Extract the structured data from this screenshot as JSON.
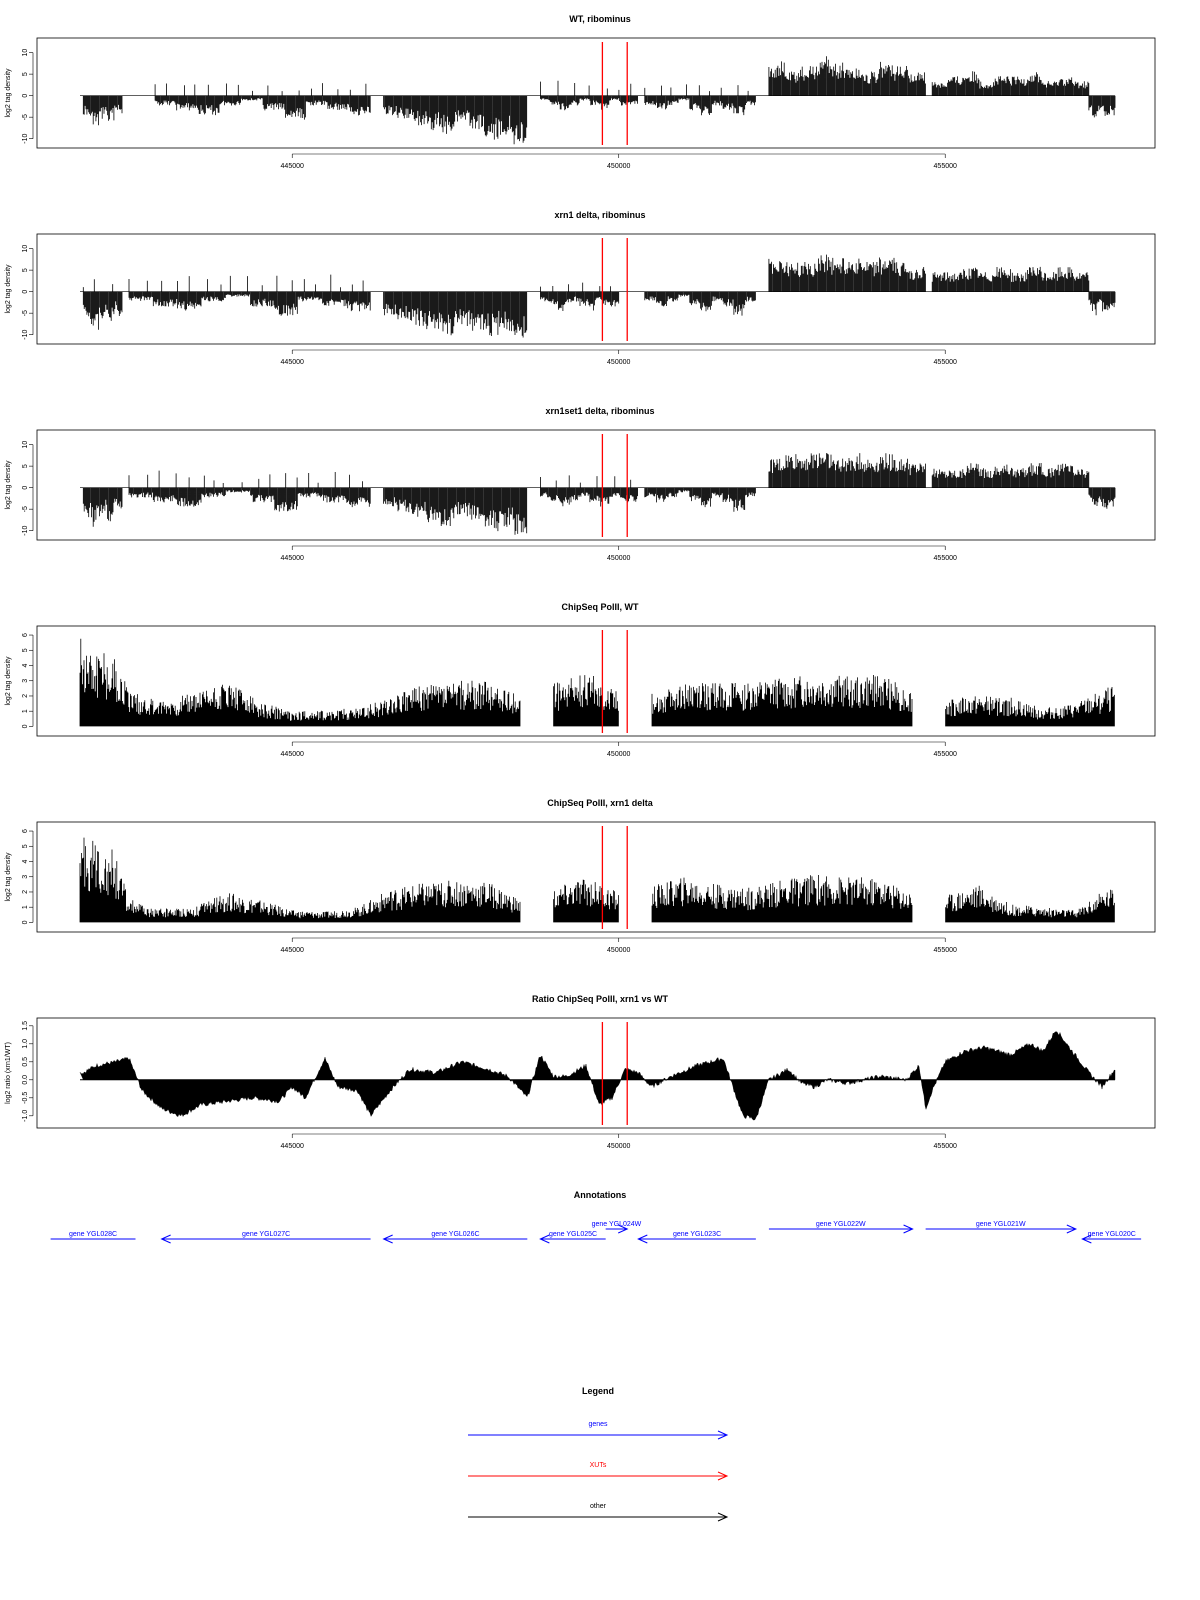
{
  "x_ticks": [
    "445000",
    "450000",
    "455000"
  ],
  "x_tick_values": [
    445000,
    450000,
    455000
  ],
  "x_range": [
    441750,
    457600
  ],
  "marker_positions": [
    449750,
    450130
  ],
  "colors": {
    "bars": "#000000",
    "marker": "#ff0000",
    "gene": "#0000ff",
    "xut": "#ff0000",
    "other": "#000000"
  },
  "chart_data": [
    {
      "type": "bar",
      "title": "WT, ribominus",
      "ylabel": "log2 tag density",
      "ylim": [
        -11,
        12
      ],
      "y_ticks": [
        "10",
        "5",
        "0",
        "-5",
        "-10"
      ],
      "y_tick_values": [
        10,
        5,
        0,
        -5,
        -10
      ],
      "segments": [
        {
          "x": [
            441800,
            442400
          ],
          "pattern": [
            -4,
            -5,
            -6,
            -7,
            -5,
            -4,
            -6,
            -5,
            -3,
            -4
          ],
          "pos": [
            0,
            0
          ]
        },
        {
          "x": [
            442900,
            446200
          ],
          "pattern": [
            -2,
            -3,
            -4,
            -2,
            -1,
            -3,
            -5,
            -2,
            -3,
            -4
          ],
          "pos": [
            1,
            2
          ]
        },
        {
          "x": [
            446400,
            448600
          ],
          "pattern": [
            -4,
            -5,
            -6,
            -7,
            -8,
            -6,
            -7,
            -9,
            -8,
            -10
          ],
          "pos": [
            0,
            0
          ]
        },
        {
          "x": [
            448800,
            450300
          ],
          "pattern": [
            -1,
            -2,
            -3,
            -2,
            -1,
            -2,
            -3,
            -1,
            -2,
            -2
          ],
          "pos": [
            1,
            3
          ]
        },
        {
          "x": [
            450400,
            452100
          ],
          "pattern": [
            -2,
            -3,
            -2,
            -1,
            -3,
            -4,
            -2,
            -3,
            -4,
            -2
          ],
          "pos": [
            1,
            2
          ]
        },
        {
          "x": [
            452300,
            454700
          ],
          "pattern": [
            7,
            5,
            6,
            8,
            7,
            6,
            5,
            7,
            6,
            5
          ],
          "pos": [
            0,
            0
          ]
        },
        {
          "x": [
            454800,
            457200
          ],
          "pattern": [
            3,
            4,
            5,
            3,
            4,
            4,
            5,
            3,
            4,
            3
          ],
          "pos": [
            0,
            0
          ]
        },
        {
          "x": [
            457200,
            457600
          ],
          "pattern": [
            -3,
            -4,
            -5,
            -4,
            -3,
            -4,
            -5,
            -4,
            -3,
            -4
          ],
          "pos": [
            0,
            0
          ]
        }
      ]
    },
    {
      "type": "bar",
      "title": "xrn1 delta, ribominus",
      "ylabel": "log2 tag density",
      "ylim": [
        -11,
        12
      ],
      "y_ticks": [
        "10",
        "5",
        "0",
        "-5",
        "-10"
      ],
      "y_tick_values": [
        10,
        5,
        0,
        -5,
        -10
      ],
      "segments": [
        {
          "x": [
            441800,
            442400
          ],
          "pattern": [
            -5,
            -6,
            -7,
            -8,
            -6,
            -5,
            -7,
            -6,
            -4,
            -5
          ],
          "pos": [
            1,
            2
          ]
        },
        {
          "x": [
            442500,
            446200
          ],
          "pattern": [
            -2,
            -3,
            -4,
            -2,
            -1,
            -3,
            -5,
            -2,
            -3,
            -4
          ],
          "pos": [
            1,
            3
          ]
        },
        {
          "x": [
            446400,
            448600
          ],
          "pattern": [
            -5,
            -6,
            -7,
            -8,
            -9,
            -7,
            -8,
            -9,
            -8,
            -10
          ],
          "pos": [
            0,
            0
          ]
        },
        {
          "x": [
            448800,
            450000
          ],
          "pattern": [
            -2,
            -3,
            -4,
            -3,
            -2,
            -3,
            -4,
            -2,
            -3,
            -3
          ],
          "pos": [
            1,
            2
          ]
        },
        {
          "x": [
            450400,
            452100
          ],
          "pattern": [
            -2,
            -3,
            -2,
            -1,
            -3,
            -4,
            -2,
            -3,
            -5,
            -2
          ],
          "pos": [
            0,
            0
          ]
        },
        {
          "x": [
            452300,
            454700
          ],
          "pattern": [
            7,
            6,
            6,
            8,
            7,
            7,
            6,
            7,
            6,
            5
          ],
          "pos": [
            0,
            0
          ]
        },
        {
          "x": [
            454800,
            457200
          ],
          "pattern": [
            4,
            4,
            5,
            4,
            5,
            4,
            5,
            4,
            5,
            4
          ],
          "pos": [
            0,
            0
          ]
        },
        {
          "x": [
            457200,
            457600
          ],
          "pattern": [
            -3,
            -4,
            -5,
            -4,
            -3,
            -4,
            -5,
            -4,
            -3,
            -4
          ],
          "pos": [
            0,
            0
          ]
        }
      ]
    },
    {
      "type": "bar",
      "title": "xrn1set1 delta, ribominus",
      "ylabel": "log2 tag density",
      "ylim": [
        -11,
        12
      ],
      "y_ticks": [
        "10",
        "5",
        "0",
        "-5",
        "-10"
      ],
      "y_tick_values": [
        10,
        5,
        0,
        -5,
        -10
      ],
      "segments": [
        {
          "x": [
            441800,
            442400
          ],
          "pattern": [
            -5,
            -6,
            -8,
            -7,
            -6,
            -5,
            -7,
            -6,
            -4,
            -5
          ],
          "pos": [
            0,
            0
          ]
        },
        {
          "x": [
            442500,
            446200
          ],
          "pattern": [
            -2,
            -3,
            -4,
            -2,
            -1,
            -3,
            -5,
            -2,
            -3,
            -4
          ],
          "pos": [
            1,
            3
          ]
        },
        {
          "x": [
            446400,
            448600
          ],
          "pattern": [
            -4,
            -5,
            -6,
            -7,
            -8,
            -6,
            -7,
            -9,
            -8,
            -10
          ],
          "pos": [
            0,
            0
          ]
        },
        {
          "x": [
            448800,
            450300
          ],
          "pattern": [
            -2,
            -3,
            -4,
            -3,
            -2,
            -3,
            -4,
            -2,
            -3,
            -3
          ],
          "pos": [
            1,
            3
          ]
        },
        {
          "x": [
            450400,
            452100
          ],
          "pattern": [
            -2,
            -3,
            -2,
            -1,
            -3,
            -4,
            -2,
            -3,
            -5,
            -2
          ],
          "pos": [
            0,
            0
          ]
        },
        {
          "x": [
            452300,
            454700
          ],
          "pattern": [
            6,
            7,
            7,
            8,
            6,
            7,
            6,
            7,
            6,
            5
          ],
          "pos": [
            0,
            0
          ]
        },
        {
          "x": [
            454800,
            457200
          ],
          "pattern": [
            4,
            4,
            5,
            4,
            5,
            4,
            5,
            4,
            5,
            4
          ],
          "pos": [
            0,
            0
          ]
        },
        {
          "x": [
            457200,
            457600
          ],
          "pattern": [
            -2,
            -3,
            -5,
            -4,
            -3,
            -4,
            -5,
            -4,
            -3,
            -4
          ],
          "pos": [
            0,
            0
          ]
        }
      ]
    },
    {
      "type": "bar",
      "title": "ChipSeq PolII, WT",
      "ylabel": "log2 tag density",
      "ylim": [
        -0.3,
        6.2
      ],
      "y_ticks": [
        "6",
        "5",
        "4",
        "3",
        "2",
        "1",
        "0"
      ],
      "y_tick_values": [
        6,
        5,
        4,
        3,
        2,
        1,
        0
      ],
      "x": [
        441750,
        442000,
        442250,
        442500,
        442750,
        443000,
        443500,
        444000,
        444500,
        445000,
        445500,
        446000,
        446500,
        447000,
        447500,
        448000,
        448500,
        448800,
        449000,
        449500,
        450000,
        450300,
        450500,
        451000,
        451500,
        452000,
        452500,
        453000,
        453500,
        454000,
        454500,
        454800,
        455000,
        455500,
        456000,
        456500,
        457000,
        457500
      ],
      "values": [
        5.9,
        5.4,
        4.8,
        2.5,
        2.0,
        1.7,
        2.2,
        3.0,
        1.6,
        1.0,
        1.1,
        1.2,
        2.0,
        2.8,
        3.0,
        3.1,
        2.0,
        0.0,
        2.8,
        3.6,
        2.6,
        0.0,
        2.3,
        2.8,
        3.0,
        2.9,
        3.2,
        3.4,
        3.3,
        3.5,
        2.4,
        0.0,
        1.8,
        2.0,
        1.9,
        1.2,
        1.5,
        2.6
      ]
    },
    {
      "type": "bar",
      "title": "ChipSeq PolII, xrn1 delta",
      "ylabel": "log2 tag density",
      "ylim": [
        -0.3,
        6.2
      ],
      "y_ticks": [
        "6",
        "5",
        "4",
        "3",
        "2",
        "1",
        "0"
      ],
      "y_tick_values": [
        6,
        5,
        4,
        3,
        2,
        1,
        0
      ],
      "x": [
        441750,
        442000,
        442250,
        442500,
        442750,
        443000,
        443500,
        444000,
        444500,
        445000,
        445500,
        446000,
        446500,
        447000,
        447500,
        448000,
        448500,
        448800,
        449000,
        449500,
        450000,
        450300,
        450500,
        451000,
        451500,
        452000,
        452500,
        453000,
        453500,
        454000,
        454500,
        454800,
        455000,
        455500,
        456000,
        456500,
        457000,
        457500
      ],
      "values": [
        5.8,
        5.3,
        4.9,
        1.6,
        1.0,
        0.9,
        1.0,
        2.0,
        1.5,
        0.8,
        0.7,
        1.0,
        2.2,
        2.6,
        2.8,
        2.7,
        1.5,
        0.0,
        2.2,
        3.0,
        2.0,
        0.0,
        2.4,
        3.0,
        2.5,
        2.3,
        2.8,
        3.2,
        3.0,
        2.9,
        2.0,
        0.0,
        1.8,
        2.5,
        1.2,
        1.0,
        0.8,
        2.3
      ]
    },
    {
      "type": "area",
      "title": "Ratio ChipSeq PolII, xrn1 vs WT",
      "ylabel": "log2 ratio (xrn1/WT)",
      "ylim": [
        -1.2,
        1.55
      ],
      "y_ticks": [
        "1.5",
        "1.0",
        "0.5",
        "0.0",
        "-0.5",
        "-1.0"
      ],
      "y_tick_values": [
        1.5,
        1.0,
        0.5,
        0.0,
        -0.5,
        -1.0
      ],
      "x": [
        441800,
        442000,
        442300,
        442500,
        442700,
        443000,
        443300,
        443600,
        444000,
        444400,
        444800,
        445000,
        445200,
        445500,
        445700,
        446000,
        446200,
        446500,
        446800,
        447200,
        447600,
        448000,
        448300,
        448600,
        448800,
        449000,
        449200,
        449500,
        449700,
        449900,
        450100,
        450300,
        450500,
        450800,
        451200,
        451600,
        451900,
        452100,
        452300,
        452600,
        452800,
        453000,
        453200,
        453500,
        454000,
        454400,
        454600,
        454700,
        454800,
        455000,
        455300,
        455600,
        456000,
        456300,
        456500,
        456700,
        456900,
        457200,
        457400,
        457600
      ],
      "values": [
        0.2,
        0.4,
        0.5,
        0.6,
        -0.3,
        -0.8,
        -1.0,
        -0.7,
        -0.6,
        -0.5,
        -0.6,
        -0.2,
        -0.5,
        0.6,
        -0.2,
        -0.3,
        -1.0,
        -0.3,
        0.3,
        0.2,
        0.5,
        0.3,
        0.1,
        -0.5,
        0.7,
        0.1,
        0.1,
        0.4,
        -0.7,
        -0.5,
        0.3,
        0.2,
        -0.2,
        0.1,
        0.4,
        0.6,
        -1.0,
        -1.1,
        0.0,
        0.3,
        -0.1,
        -0.2,
        0.0,
        -0.1,
        0.1,
        0.0,
        0.4,
        -0.8,
        -0.3,
        0.5,
        0.8,
        0.9,
        0.7,
        1.0,
        0.8,
        1.4,
        0.9,
        0.2,
        -0.2,
        0.3
      ]
    }
  ],
  "annotations": {
    "title": "Annotations",
    "genes": [
      {
        "label": "gene YGL028C",
        "start": 441300,
        "end": 442600,
        "dir": "none",
        "row": 0
      },
      {
        "label": "gene YGL027C",
        "start": 443000,
        "end": 446200,
        "dir": "left",
        "row": 0
      },
      {
        "label": "gene YGL026C",
        "start": 446400,
        "end": 448600,
        "dir": "left",
        "row": 0
      },
      {
        "label": "gene YGL025C",
        "start": 448800,
        "end": 449800,
        "dir": "left",
        "row": 0
      },
      {
        "label": "gene YGL024W",
        "start": 449800,
        "end": 450130,
        "dir": "right",
        "row": 1
      },
      {
        "label": "gene YGL023C",
        "start": 450300,
        "end": 452100,
        "dir": "left",
        "row": 0
      },
      {
        "label": "gene YGL022W",
        "start": 452300,
        "end": 454500,
        "dir": "right",
        "row": 1
      },
      {
        "label": "gene YGL021W",
        "start": 454700,
        "end": 457000,
        "dir": "right",
        "row": 1
      },
      {
        "label": "gene YGL020C",
        "start": 457100,
        "end": 458000,
        "dir": "left",
        "row": 0
      }
    ]
  },
  "legend": {
    "title": "Legend",
    "items": [
      {
        "label": "genes",
        "color": "#0000ff"
      },
      {
        "label": "XUTs",
        "color": "#ff0000"
      },
      {
        "label": "other",
        "color": "#000000"
      }
    ]
  }
}
